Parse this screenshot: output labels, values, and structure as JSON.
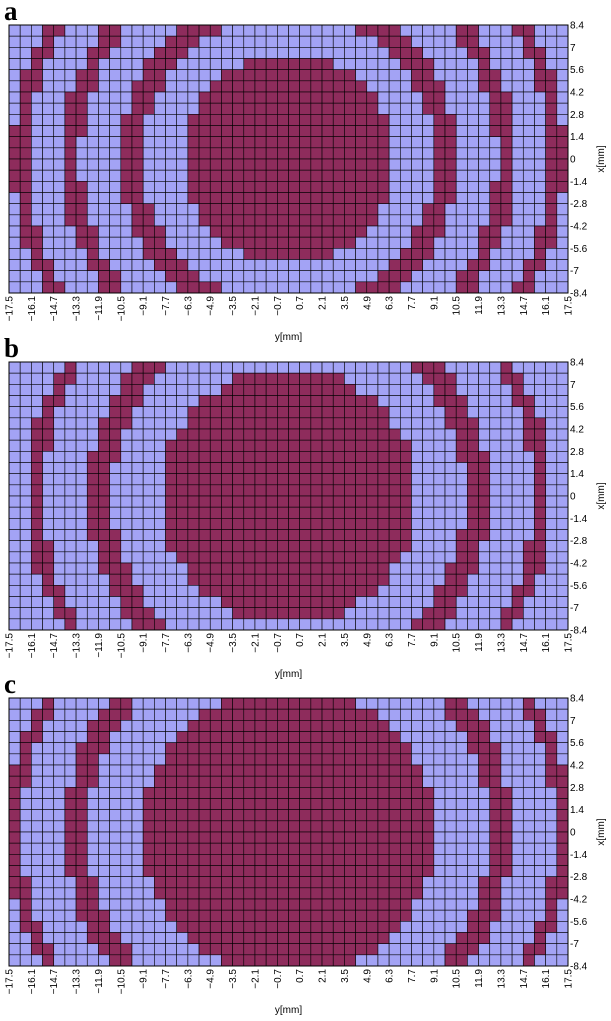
{
  "colors": {
    "low": "#a3a3f5",
    "high": "#8e2c5c",
    "grid": "#000000"
  },
  "chart_data": [
    {
      "type": "heatmap",
      "panel_label": "a",
      "xlabel": "y[mm]",
      "ylabel": "x[mm]",
      "xlim": [
        -17.5,
        17.5
      ],
      "ylim": [
        -8.4,
        8.4
      ],
      "x_ticks": [
        "-17.5",
        "-16.1",
        "-14.7",
        "-13.3",
        "-11.9",
        "-10.5",
        "-9.1",
        "-7.7",
        "-6.3",
        "-4.9",
        "-3.5",
        "-2.1",
        "-0.7",
        "0.7",
        "2.1",
        "3.5",
        "4.9",
        "6.3",
        "7.7",
        "9.1",
        "10.5",
        "11.9",
        "13.3",
        "14.7",
        "16.1",
        "17.5"
      ],
      "y_ticks": [
        "8.4",
        "7",
        "5.6",
        "4.2",
        "2.8",
        "1.4",
        "0",
        "-1.4",
        "-2.8",
        "-4.2",
        "-5.6",
        "-7",
        "-8.4"
      ],
      "rings": [
        {
          "shape": "disc",
          "radius": 6.6,
          "note": "central region"
        },
        {
          "shape": "annulus",
          "inner": 9.2,
          "outer": 10.6
        },
        {
          "shape": "annulus",
          "inner": 13.0,
          "outer": 14.2
        },
        {
          "shape": "annulus",
          "inner": 16.3,
          "outer": 17.3
        }
      ]
    },
    {
      "type": "heatmap",
      "panel_label": "b",
      "xlabel": "y[mm]",
      "ylabel": "x[mm]",
      "xlim": [
        -17.5,
        17.5
      ],
      "ylim": [
        -8.4,
        8.4
      ],
      "x_ticks": [
        "-17.5",
        "-16.1",
        "-14.7",
        "-13.3",
        "-11.9",
        "-10.5",
        "-9.1",
        "-7.7",
        "-6.3",
        "-4.9",
        "-3.5",
        "-2.1",
        "-0.7",
        "0.7",
        "2.1",
        "3.5",
        "4.9",
        "6.3",
        "7.7",
        "9.1",
        "10.5",
        "11.9",
        "13.3",
        "14.7",
        "16.1",
        "17.5"
      ],
      "y_ticks": [
        "8.4",
        "7",
        "5.6",
        "4.2",
        "2.8",
        "1.4",
        "0",
        "-1.4",
        "-2.8",
        "-4.2",
        "-5.6",
        "-7",
        "-8.4"
      ],
      "rings": [
        {
          "shape": "disc",
          "radius": 8.0
        },
        {
          "shape": "annulus",
          "inner": 11.1,
          "outer": 12.6
        },
        {
          "shape": "annulus",
          "inner": 15.3,
          "outer": 16.4
        }
      ]
    },
    {
      "type": "heatmap",
      "panel_label": "c",
      "xlabel": "y[mm]",
      "ylabel": "x[mm]",
      "xlim": [
        -17.5,
        17.5
      ],
      "ylim": [
        -8.4,
        8.4
      ],
      "x_ticks": [
        "-17.5",
        "-16.1",
        "-14.7",
        "-13.3",
        "-11.9",
        "-10.5",
        "-9.1",
        "-7.7",
        "-6.3",
        "-4.9",
        "-3.5",
        "-2.1",
        "-0.7",
        "0.7",
        "2.1",
        "3.5",
        "4.9",
        "6.3",
        "7.7",
        "9.1",
        "10.5",
        "11.9",
        "13.3",
        "14.7",
        "16.1",
        "17.5"
      ],
      "y_ticks": [
        "8.4",
        "7",
        "5.6",
        "4.2",
        "2.8",
        "1.4",
        "0",
        "-1.4",
        "-2.8",
        "-4.2",
        "-5.6",
        "-7",
        "-8.4"
      ],
      "rings": [
        {
          "shape": "disc",
          "radius": 9.1
        },
        {
          "shape": "annulus",
          "inner": 12.5,
          "outer": 14.0
        },
        {
          "shape": "annulus",
          "inner": 16.7,
          "outer": 17.6
        }
      ]
    }
  ]
}
